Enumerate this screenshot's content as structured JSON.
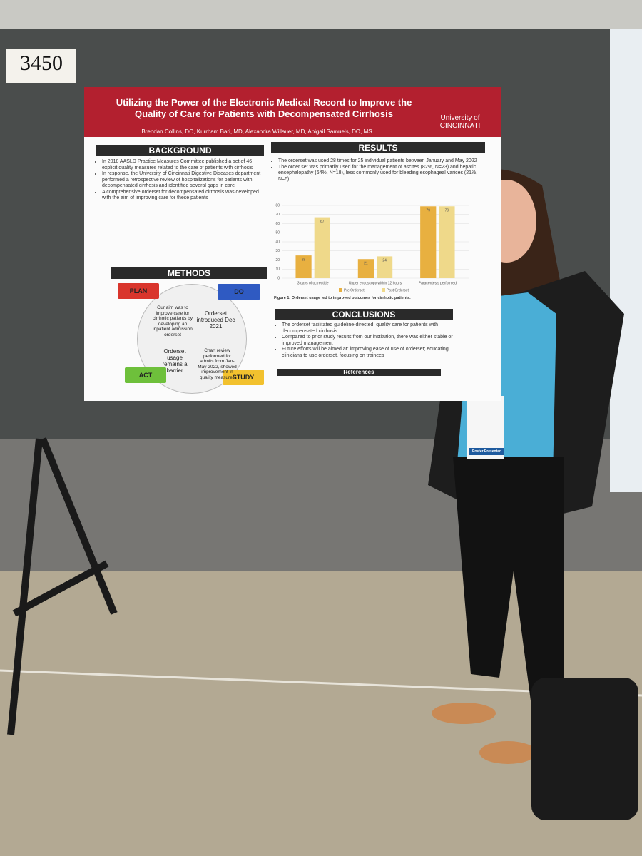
{
  "booth_number": "3450",
  "poster": {
    "title": "Utilizing the Power of the Electronic Medical Record to Improve the Quality of Care for Patients with Decompensated Cirrhosis",
    "authors": "Brendan Collins, DO, Kurrham Bari, MD, Alexandra Willauer, MD, Abigail Samuels, DO, MS",
    "logo": "University of CINCINNATI",
    "background": {
      "heading": "BACKGROUND",
      "bullets": [
        "In 2018 AASLD Practice Measures Committee published a set of 46 explicit quality measures related to the care of patients with cirrhosis",
        "In response, the University of Cincinnati Digestive Diseases department performed a retrospective review of hospitalizations for patients with decompensated cirrhosis and identified several gaps in care",
        "A comprehensive orderset for decompensated cirrhosis was developed with the aim of improving care for these patients"
      ]
    },
    "methods": {
      "heading": "METHODS",
      "plan": "PLAN",
      "do": "DO",
      "act": "ACT",
      "study": "STUDY",
      "quadrants": [
        "Our aim was to improve care for cirrhotic patients by developing an inpatient admission orderset",
        "Orderset introduced Dec 2021",
        "Orderset usage remains a barrier",
        "Chart review performed for admits from Jan-May 2022, showed improvement in quality measures"
      ]
    },
    "results": {
      "heading": "RESULTS",
      "bullets": [
        "The orderset was used 28 times for 25 individual patients between January and May 2022",
        "The order set was primarily used for the management of ascites (82%, N=23) and hepatic encephalopathy (64%, N=18), less commonly used for bleeding esophageal varices (21%, N=6)"
      ],
      "chart": {
        "categories": [
          "3 days of octreotide",
          "Upper endoscopy within 12 hours",
          "Paracentesis performed"
        ],
        "series": [
          {
            "name": "Pre Orderset",
            "color": "#e8b040",
            "values": [
              25,
              21,
              79
            ]
          },
          {
            "name": "Post Orderset",
            "color": "#efd98a",
            "values": [
              67,
              24,
              79
            ]
          }
        ],
        "ylim": [
          0,
          80
        ],
        "yticks": [
          0,
          10,
          20,
          30,
          40,
          50,
          60,
          70,
          80
        ]
      },
      "caption": "Figure 1: Orderset usage led to improved outcomes for cirrhotic patients."
    },
    "conclusions": {
      "heading": "CONCLUSIONS",
      "bullets": [
        "The orderset facilitated guideline-directed, quality care for patients with decompensated cirrhosis",
        "Compared to prior study results from our institution, there was either stable or improved management",
        "Future efforts will be aimed at: improving ease of use of orderset; educating clinicians to use orderset, focusing on trainees"
      ]
    },
    "references": {
      "heading": "References"
    }
  },
  "badge": {
    "role": "Poster Presenter"
  }
}
